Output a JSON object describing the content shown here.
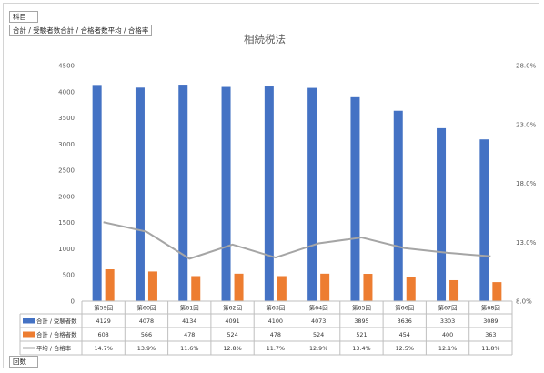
{
  "pivot": {
    "filter_label": "科目",
    "values_label": "合計 / 受験者数合計 / 合格者数平均 / 合格率",
    "axis_label": "回数"
  },
  "chart_data": {
    "type": "bar",
    "title": "相続税法",
    "categories": [
      "第59回",
      "第60回",
      "第61回",
      "第62回",
      "第63回",
      "第64回",
      "第65回",
      "第66回",
      "第67回",
      "第68回"
    ],
    "series": [
      {
        "name": "合計 / 受験者数",
        "type": "bar",
        "axis": "left",
        "color": "#4472C4",
        "values": [
          4129,
          4078,
          4134,
          4091,
          4100,
          4073,
          3895,
          3636,
          3303,
          3089
        ]
      },
      {
        "name": "合計 / 合格者数",
        "type": "bar",
        "axis": "left",
        "color": "#ED7D31",
        "values": [
          608,
          566,
          478,
          524,
          478,
          524,
          521,
          454,
          400,
          363
        ]
      },
      {
        "name": "平均 / 合格率",
        "type": "line",
        "axis": "right",
        "color": "#A5A5A5",
        "values": [
          14.7,
          13.9,
          11.6,
          12.8,
          11.7,
          12.9,
          13.4,
          12.5,
          12.1,
          11.8
        ],
        "labels": [
          "14.7%",
          "13.9%",
          "11.6%",
          "12.8%",
          "11.7%",
          "12.9%",
          "13.4%",
          "12.5%",
          "12.1%",
          "11.8%"
        ]
      }
    ],
    "ylim": [
      0,
      4500
    ],
    "yticks": [
      "0",
      "500",
      "1000",
      "1500",
      "2000",
      "2500",
      "3000",
      "3500",
      "4000",
      "4500"
    ],
    "y2lim": [
      8.0,
      28.0
    ],
    "y2ticks": [
      "8.0%",
      "13.0%",
      "18.0%",
      "23.0%",
      "28.0%"
    ],
    "grid": false,
    "legend": "data-table"
  }
}
